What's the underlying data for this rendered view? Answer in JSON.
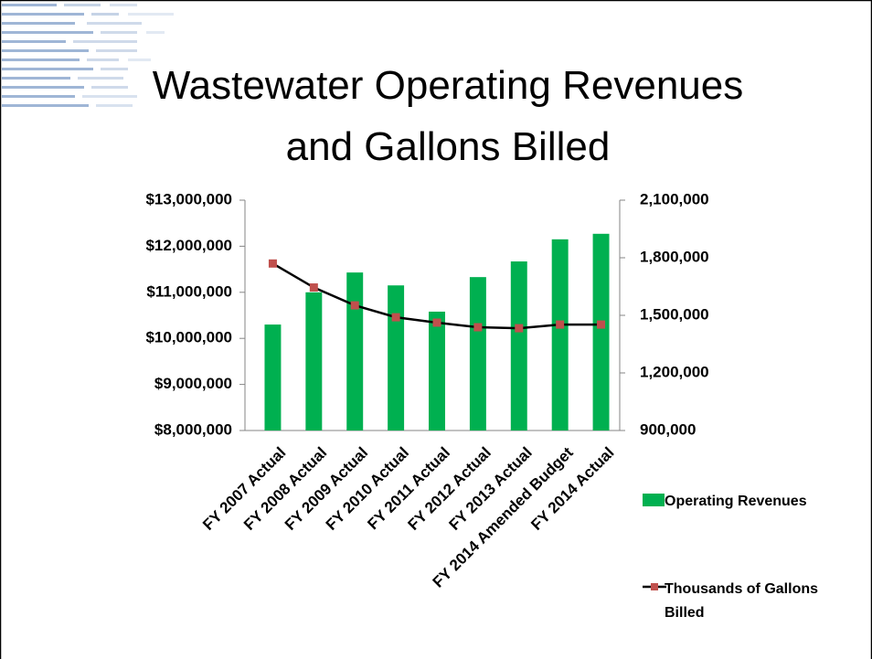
{
  "chart_data": {
    "type": "bar_line",
    "title": "Wastewater Operating Revenues and Gallons Billed",
    "categories": [
      "FY 2007 Actual",
      "FY 2008 Actual",
      "FY 2009 Actual",
      "FY 2010 Actual",
      "FY 2011 Actual",
      "FY 2012 Actual",
      "FY 2013 Actual",
      "FY 2014 Amended Budget",
      "FY 2014 Actual"
    ],
    "series": [
      {
        "name": "Operating Revenues",
        "type": "bar",
        "color": "#00b050",
        "values": [
          10300000,
          11000000,
          11430000,
          11150000,
          10580000,
          11330000,
          11670000,
          12150000,
          12270000
        ]
      },
      {
        "name": "Thousands of Gallons Billed",
        "type": "line",
        "axis": "y2",
        "color": "#000000",
        "marker_color": "#c0504d",
        "values": [
          1770000,
          1645000,
          1552000,
          1490000,
          1462000,
          1438000,
          1433000,
          1452000,
          1452000
        ]
      }
    ],
    "ylim": [
      8000000,
      13000000
    ],
    "yticks": [
      {
        "value": 8000000,
        "label": "$8,000,000"
      },
      {
        "value": 9000000,
        "label": "$9,000,000"
      },
      {
        "value": 10000000,
        "label": "$10,000,000"
      },
      {
        "value": 11000000,
        "label": "$11,000,000"
      },
      {
        "value": 12000000,
        "label": "$12,000,000"
      },
      {
        "value": 13000000,
        "label": "$13,000,000"
      }
    ],
    "y2lim": [
      900000,
      2100000
    ],
    "y2ticks": [
      {
        "value": 900000,
        "label": "900,000"
      },
      {
        "value": 1200000,
        "label": "1,200,000"
      },
      {
        "value": 1500000,
        "label": "1,500,000"
      },
      {
        "value": 1800000,
        "label": "1,800,000"
      },
      {
        "value": 2100000,
        "label": "2,100,000"
      }
    ],
    "grid": false
  }
}
